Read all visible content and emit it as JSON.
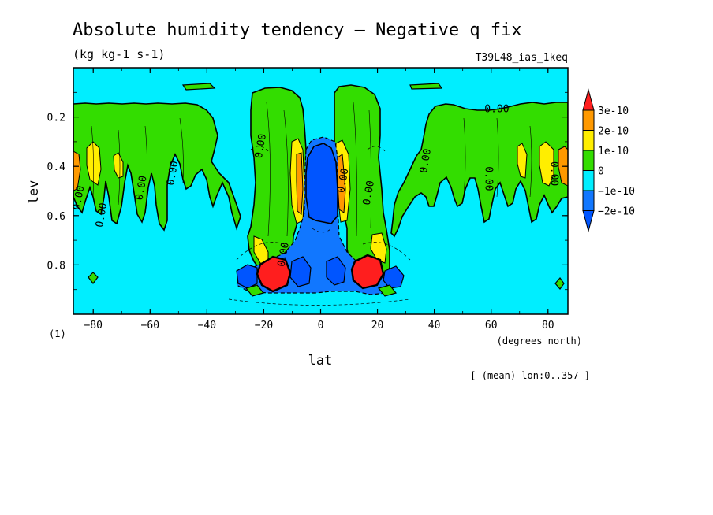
{
  "chart_data": {
    "type": "heatmap",
    "title": "Absolute humidity tendency — Negative q fix",
    "units": "(kg kg-1 s-1)",
    "run_label": "T39L48_ias_1keq",
    "xlabel": "lat",
    "x_units": "(degrees_north)",
    "ylabel": "lev",
    "y_units": "(1)",
    "xlim": [
      -87,
      87
    ],
    "ylim": [
      1.0,
      0.0
    ],
    "x_ticks": [
      -80,
      -60,
      -40,
      -20,
      0,
      20,
      40,
      60,
      80
    ],
    "y_ticks": [
      0.2,
      0.4,
      0.6,
      0.8
    ],
    "footnote": "[ (mean) lon:0..357 ]",
    "contour_label": "0.00",
    "colorbar": {
      "levels": [
        "3e-10",
        "2e-10",
        "1e-10",
        "0",
        "-1e-10",
        "-2e-10"
      ],
      "colors": [
        "#ff1e1e",
        "#ff9900",
        "#ffee00",
        "#33dd00",
        "#00eeff",
        "#1177ff",
        "#0055ff"
      ]
    },
    "background_color": "#00eeff",
    "features": [
      {
        "type": "positive",
        "level": "0 to 1e-10",
        "lat_range": [
          -87,
          -28
        ],
        "lev_range": [
          0.12,
          0.72
        ],
        "desc": "streaky green band SH"
      },
      {
        "type": "positive",
        "level": "0 to 1e-10",
        "lat_range": [
          28,
          87
        ],
        "lev_range": [
          0.12,
          0.72
        ],
        "desc": "streaky green band NH"
      },
      {
        "type": "positive",
        "level": "0 to 1e-10",
        "lat_range": [
          -25,
          -5
        ],
        "lev_range": [
          0.05,
          0.85
        ]
      },
      {
        "type": "positive",
        "level": "0 to 1e-10",
        "lat_range": [
          5,
          25
        ],
        "lev_range": [
          0.05,
          0.85
        ]
      },
      {
        "type": "negative",
        "level": "-2e-10",
        "lat_range": [
          -5,
          5
        ],
        "lev_range": [
          0.3,
          0.6
        ],
        "desc": "equatorial negative core"
      },
      {
        "type": "positive",
        "level": "3e-10",
        "lat_range": [
          -22,
          -12
        ],
        "lev_range": [
          0.8,
          0.93
        ]
      },
      {
        "type": "positive",
        "level": "3e-10",
        "lat_range": [
          12,
          22
        ],
        "lev_range": [
          0.8,
          0.93
        ]
      },
      {
        "type": "negative",
        "level": "-2e-10",
        "lat_range": [
          -30,
          -22
        ],
        "lev_range": [
          0.82,
          0.92
        ]
      },
      {
        "type": "negative",
        "level": "-2e-10",
        "lat_range": [
          22,
          30
        ],
        "lev_range": [
          0.82,
          0.92
        ]
      }
    ]
  }
}
